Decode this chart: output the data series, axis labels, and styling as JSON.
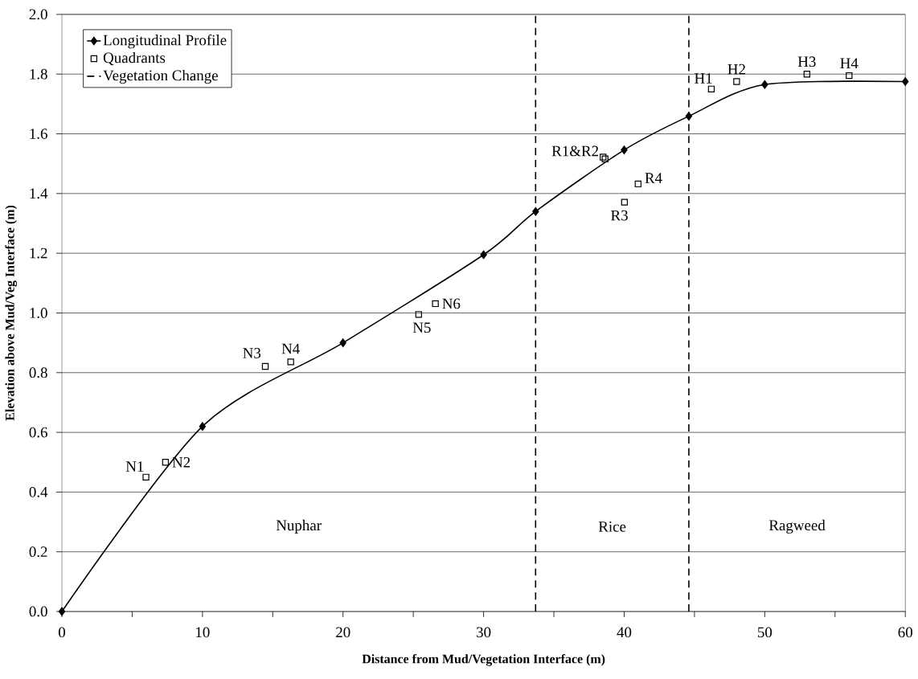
{
  "chart_data": {
    "type": "line",
    "xlabel": "Distance from Mud/Vegetation Interface (m)",
    "ylabel": "Elevation above Mud/Veg Interface (m)",
    "series": [
      {
        "name": "Longitudinal Profile",
        "type": "line",
        "color": "#000000",
        "marker": "diamond",
        "line_style": "solid",
        "x": [
          0,
          10,
          20,
          30,
          33.7,
          40,
          44.6,
          50,
          60
        ],
        "values": [
          0,
          0.62,
          0.9,
          1.195,
          1.34,
          1.546,
          1.659,
          1.765,
          1.775
        ]
      },
      {
        "name": "Quadrants",
        "type": "scatter",
        "color": "#000000",
        "marker": "square",
        "x": [
          5.98,
          7.37,
          14.47,
          16.28,
          25.38,
          26.57,
          38.5,
          38.64,
          40.02,
          40.99,
          46.2,
          48.0,
          53.0,
          56.0
        ],
        "values": [
          0.45,
          0.5,
          0.821,
          0.836,
          0.995,
          1.031,
          1.522,
          1.516,
          1.371,
          1.432,
          1.75,
          1.775,
          1.8,
          1.795
        ]
      },
      {
        "name": "Vegetation Change",
        "type": "line",
        "color": "#000000",
        "marker": "none",
        "line_style": "dashed",
        "x": [
          33.7,
          33.7,
          null,
          44.6,
          44.6
        ],
        "values": [
          0,
          2,
          null,
          0,
          2
        ]
      }
    ],
    "annotations": [
      {
        "text": "N1",
        "x": 5.98,
        "y": 0.45
      },
      {
        "text": "N2",
        "x": 7.37,
        "y": 0.5
      },
      {
        "text": "N3",
        "x": 14.47,
        "y": 0.821
      },
      {
        "text": "N4",
        "x": 16.28,
        "y": 0.836
      },
      {
        "text": "N5",
        "x": 25.38,
        "y": 0.995
      },
      {
        "text": "N6",
        "x": 26.57,
        "y": 1.031
      },
      {
        "text": "R1&R2",
        "x": 38.5,
        "y": 1.522
      },
      {
        "text": "R3",
        "x": 40.02,
        "y": 1.371
      },
      {
        "text": "R4",
        "x": 40.99,
        "y": 1.432
      },
      {
        "text": "H1",
        "x": 46.2,
        "y": 1.75
      },
      {
        "text": "H2",
        "x": 48.0,
        "y": 1.775
      },
      {
        "text": "H3",
        "x": 53.0,
        "y": 1.8
      },
      {
        "text": "H4",
        "x": 56.0,
        "y": 1.795
      },
      "Nuphar",
      "Rice",
      "Ragweed"
    ],
    "xlim": [
      0,
      60
    ],
    "xticks": [
      0,
      {
        "value": 5,
        "label": null
      },
      10,
      {
        "value": 15,
        "label": null
      },
      20,
      {
        "value": 25,
        "label": null
      },
      30,
      {
        "value": 35,
        "label": null
      },
      40,
      {
        "value": 45,
        "label": null
      },
      50,
      {
        "value": 55,
        "label": null
      },
      60
    ],
    "ylim": [
      0,
      2
    ],
    "yticks": [
      {
        "value": 0,
        "label": "0.0"
      },
      0.2,
      0.4,
      0.6,
      0.8,
      {
        "value": 1,
        "label": "1.0"
      },
      1.2,
      1.4,
      1.6,
      1.8,
      {
        "value": 2,
        "label": "2.0"
      }
    ],
    "grid": "y",
    "legend": "top left"
  }
}
